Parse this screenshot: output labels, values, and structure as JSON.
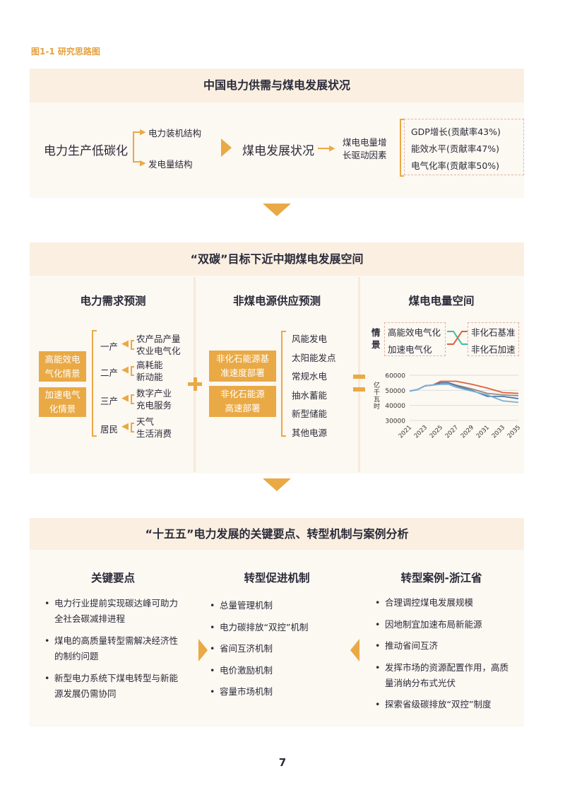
{
  "caption": "图1-1 研究思路图",
  "section1": {
    "title": "中国电力供需与煤电发展状况",
    "left": "电力生产低碳化",
    "branches": [
      "电力装机结构",
      "发电量结构"
    ],
    "middle": "煤电发展状况",
    "drivers_title": [
      "煤电电量增",
      "长驱动因素"
    ],
    "drivers": [
      "GDP增长(贡献率43%)",
      "能效水平(贡献率47%)",
      "电气化率(贡献率50%)"
    ]
  },
  "section2": {
    "title": "“双碳”目标下近中期煤电发展空间",
    "demand": {
      "title": "电力需求预测",
      "scenarios": [
        [
          "高能效电",
          "气化情景"
        ],
        [
          "加速电气",
          "化情景"
        ]
      ],
      "sectors": [
        {
          "label": "一产",
          "items": [
            "农产品产量",
            "农业电气化"
          ]
        },
        {
          "label": "二产",
          "items": [
            "高耗能",
            "新动能"
          ]
        },
        {
          "label": "三产",
          "items": [
            "数字产业",
            "充电服务"
          ]
        },
        {
          "label": "居民",
          "items": [
            "天气",
            "生活消费"
          ]
        }
      ]
    },
    "supply": {
      "title": "非煤电源供应预测",
      "scenarios": [
        [
          "非化石能源基",
          "准速度部署"
        ],
        [
          "非化石能源",
          "高速部署"
        ]
      ],
      "sources": [
        "风能发电",
        "太阳能发点",
        "常规水电",
        "抽水蓄能",
        "新型储能",
        "其他电源"
      ]
    },
    "space": {
      "title": "煤电电量空间",
      "scenario_label": [
        "情",
        "景"
      ],
      "demand_scenarios": [
        "高能效电气化",
        "加速电气化"
      ],
      "supply_scenarios": [
        "非化石基准",
        "非化石加速"
      ],
      "colors": {
        "teal": "#3cbfa4",
        "red": "#e0603a"
      }
    }
  },
  "chart_data": {
    "type": "line",
    "ylabel": "亿千瓦时",
    "ylim": [
      30000,
      60000
    ],
    "yticks": [
      "60000",
      "50000",
      "40000",
      "30000"
    ],
    "x": [
      2021,
      2022,
      2023,
      2024,
      2025,
      2026,
      2027,
      2029,
      2031,
      2033,
      2035
    ],
    "xticks": [
      "2021",
      "2023",
      "2025",
      "2027",
      "2029",
      "2031",
      "2033",
      "2035"
    ],
    "grid": true,
    "series": [
      {
        "color": "#e0603a",
        "values": [
          49500,
          50500,
          53000,
          53500,
          56000,
          56000,
          56000,
          54000,
          51500,
          48500,
          48000
        ]
      },
      {
        "color": "#9a8a80",
        "values": [
          49500,
          50500,
          53000,
          53500,
          55000,
          55000,
          53500,
          51000,
          48000,
          47000,
          46500
        ]
      },
      {
        "color": "#4a78b0",
        "values": [
          49500,
          50500,
          53000,
          53500,
          55000,
          55000,
          53000,
          50000,
          46000,
          46000,
          44500
        ]
      },
      {
        "color": "#78b0d8",
        "values": [
          49500,
          50500,
          53000,
          53500,
          54000,
          54000,
          52000,
          49500,
          47000,
          43000,
          42000
        ]
      }
    ]
  },
  "section3": {
    "title": "“十五五”电力发展的关键要点、转型机制与案例分析",
    "cols": [
      {
        "title": "关键要点",
        "items": [
          "电力行业提前实现碳达峰可助力全社会碳减排进程",
          "煤电的高质量转型需解决经济性的制约问题",
          "新型电力系统下煤电转型与新能源发展仍需协同"
        ]
      },
      {
        "title": "转型促进机制",
        "items": [
          "总量管理机制",
          "电力碳排放“双控”机制",
          "省间互济机制",
          "电价激励机制",
          "容量市场机制"
        ]
      },
      {
        "title": "转型案例-浙江省",
        "items": [
          "合理调控煤电发展规模",
          "因地制宜加速布局新能源",
          "推动省间互济",
          "发挥市场的资源配置作用，高质量消纳分布式光伏",
          "探索省级碳排放“双控”制度"
        ]
      }
    ]
  },
  "page_number": "7",
  "colors": {
    "accent": "#e9a945",
    "header_bg": "#faefe1",
    "body_bg": "#fcf8f2"
  }
}
